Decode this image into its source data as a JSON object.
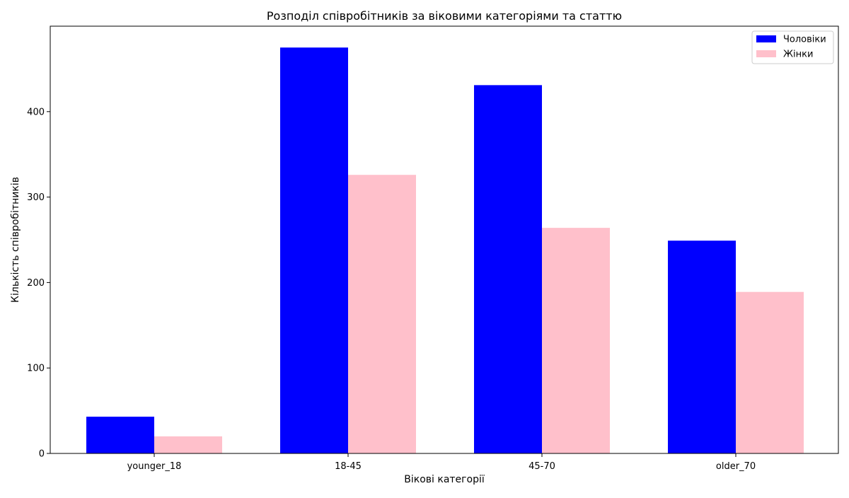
{
  "chart_data": {
    "type": "bar",
    "title": "Розподіл співробітників за віковими категоріями та статтю",
    "xlabel": "Вікові категорії",
    "ylabel": "Кількість співробітників",
    "categories": [
      "younger_18",
      "18-45",
      "45-70",
      "older_70"
    ],
    "series": [
      {
        "name": "Чоловіки",
        "color": "#0000ff",
        "values": [
          43,
          475,
          431,
          249
        ]
      },
      {
        "name": "Жінки",
        "color": "#ffc0cb",
        "values": [
          20,
          326,
          264,
          189
        ]
      }
    ],
    "ylim": [
      0,
      500
    ],
    "yticks": [
      0,
      100,
      200,
      300,
      400
    ],
    "grid": false,
    "legend_position": "top-right"
  }
}
